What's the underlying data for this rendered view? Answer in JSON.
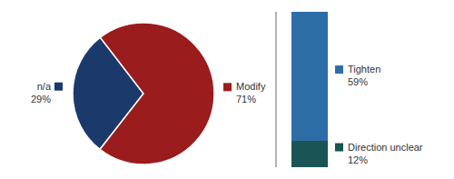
{
  "chart_data": [
    {
      "type": "pie",
      "categories": [
        "n/a",
        "Modify"
      ],
      "values": [
        29,
        71
      ],
      "value_labels": [
        "29%",
        "71%"
      ],
      "colors": [
        "#1b3a6b",
        "#9b1c1c"
      ],
      "data_labels": true
    },
    {
      "type": "bar",
      "stacked": true,
      "categories": [
        null
      ],
      "series": [
        {
          "name": "Tighten",
          "color": "#2e6ea6",
          "values": [
            59
          ],
          "value_labels": [
            "59%"
          ]
        },
        {
          "name": "Direction unclear",
          "color": "#1a5454",
          "values": [
            12
          ],
          "value_labels": [
            "12%"
          ]
        }
      ],
      "ylim": [
        0,
        71
      ],
      "tick_labels": false,
      "data_labels": true
    }
  ]
}
